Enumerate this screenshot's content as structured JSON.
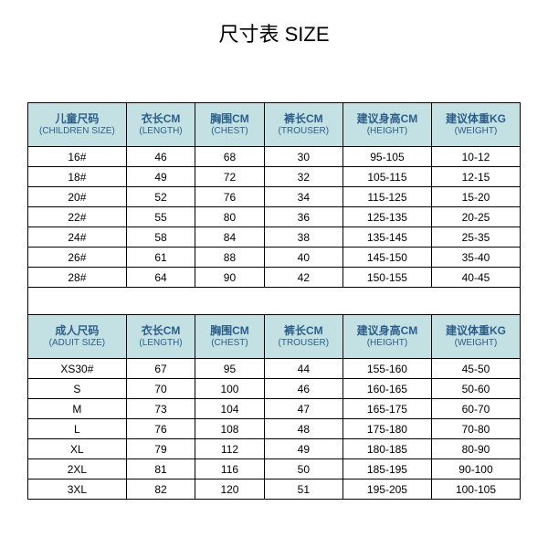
{
  "title": "尺寸表 SIZE",
  "colors": {
    "header_bg": "#c3e1e3",
    "header_text": "#2b5f8a",
    "border": "#000000",
    "body_text": "#000000",
    "background": "#ffffff"
  },
  "columns": [
    {
      "zh_child": "儿童尺码",
      "en_child": "(CHILDREN SIZE)",
      "zh_adult": "成人尺码",
      "en_adult": "(ADUIT SIZE)"
    },
    {
      "zh": "衣长CM",
      "en": "(LENGTH)"
    },
    {
      "zh": "胸围CM",
      "en": "(CHEST)"
    },
    {
      "zh": "裤长CM",
      "en": "(TROUSER)"
    },
    {
      "zh": "建议身高CM",
      "en": "(HEIGHT)"
    },
    {
      "zh": "建议体重KG",
      "en": "(WEIGHT)"
    }
  ],
  "children_rows": [
    {
      "size": "16#",
      "length": "46",
      "chest": "68",
      "trouser": "30",
      "height": "95-105",
      "weight": "10-12"
    },
    {
      "size": "18#",
      "length": "49",
      "chest": "72",
      "trouser": "32",
      "height": "105-115",
      "weight": "12-15"
    },
    {
      "size": "20#",
      "length": "52",
      "chest": "76",
      "trouser": "34",
      "height": "115-125",
      "weight": "15-20"
    },
    {
      "size": "22#",
      "length": "55",
      "chest": "80",
      "trouser": "36",
      "height": "125-135",
      "weight": "20-25"
    },
    {
      "size": "24#",
      "length": "58",
      "chest": "84",
      "trouser": "38",
      "height": "135-145",
      "weight": "25-35"
    },
    {
      "size": "26#",
      "length": "61",
      "chest": "88",
      "trouser": "40",
      "height": "145-150",
      "weight": "35-40"
    },
    {
      "size": "28#",
      "length": "64",
      "chest": "90",
      "trouser": "42",
      "height": "150-155",
      "weight": "40-45"
    }
  ],
  "adult_rows": [
    {
      "size": "XS30#",
      "length": "67",
      "chest": "95",
      "trouser": "44",
      "height": "155-160",
      "weight": "45-50"
    },
    {
      "size": "S",
      "length": "70",
      "chest": "100",
      "trouser": "46",
      "height": "160-165",
      "weight": "50-60"
    },
    {
      "size": "M",
      "length": "73",
      "chest": "104",
      "trouser": "47",
      "height": "165-175",
      "weight": "60-70"
    },
    {
      "size": "L",
      "length": "76",
      "chest": "108",
      "trouser": "48",
      "height": "175-180",
      "weight": "70-80"
    },
    {
      "size": "XL",
      "length": "79",
      "chest": "112",
      "trouser": "49",
      "height": "180-185",
      "weight": "80-90"
    },
    {
      "size": "2XL",
      "length": "81",
      "chest": "116",
      "trouser": "50",
      "height": "185-195",
      "weight": "90-100"
    },
    {
      "size": "3XL",
      "length": "82",
      "chest": "120",
      "trouser": "51",
      "height": "195-205",
      "weight": "100-105"
    }
  ]
}
